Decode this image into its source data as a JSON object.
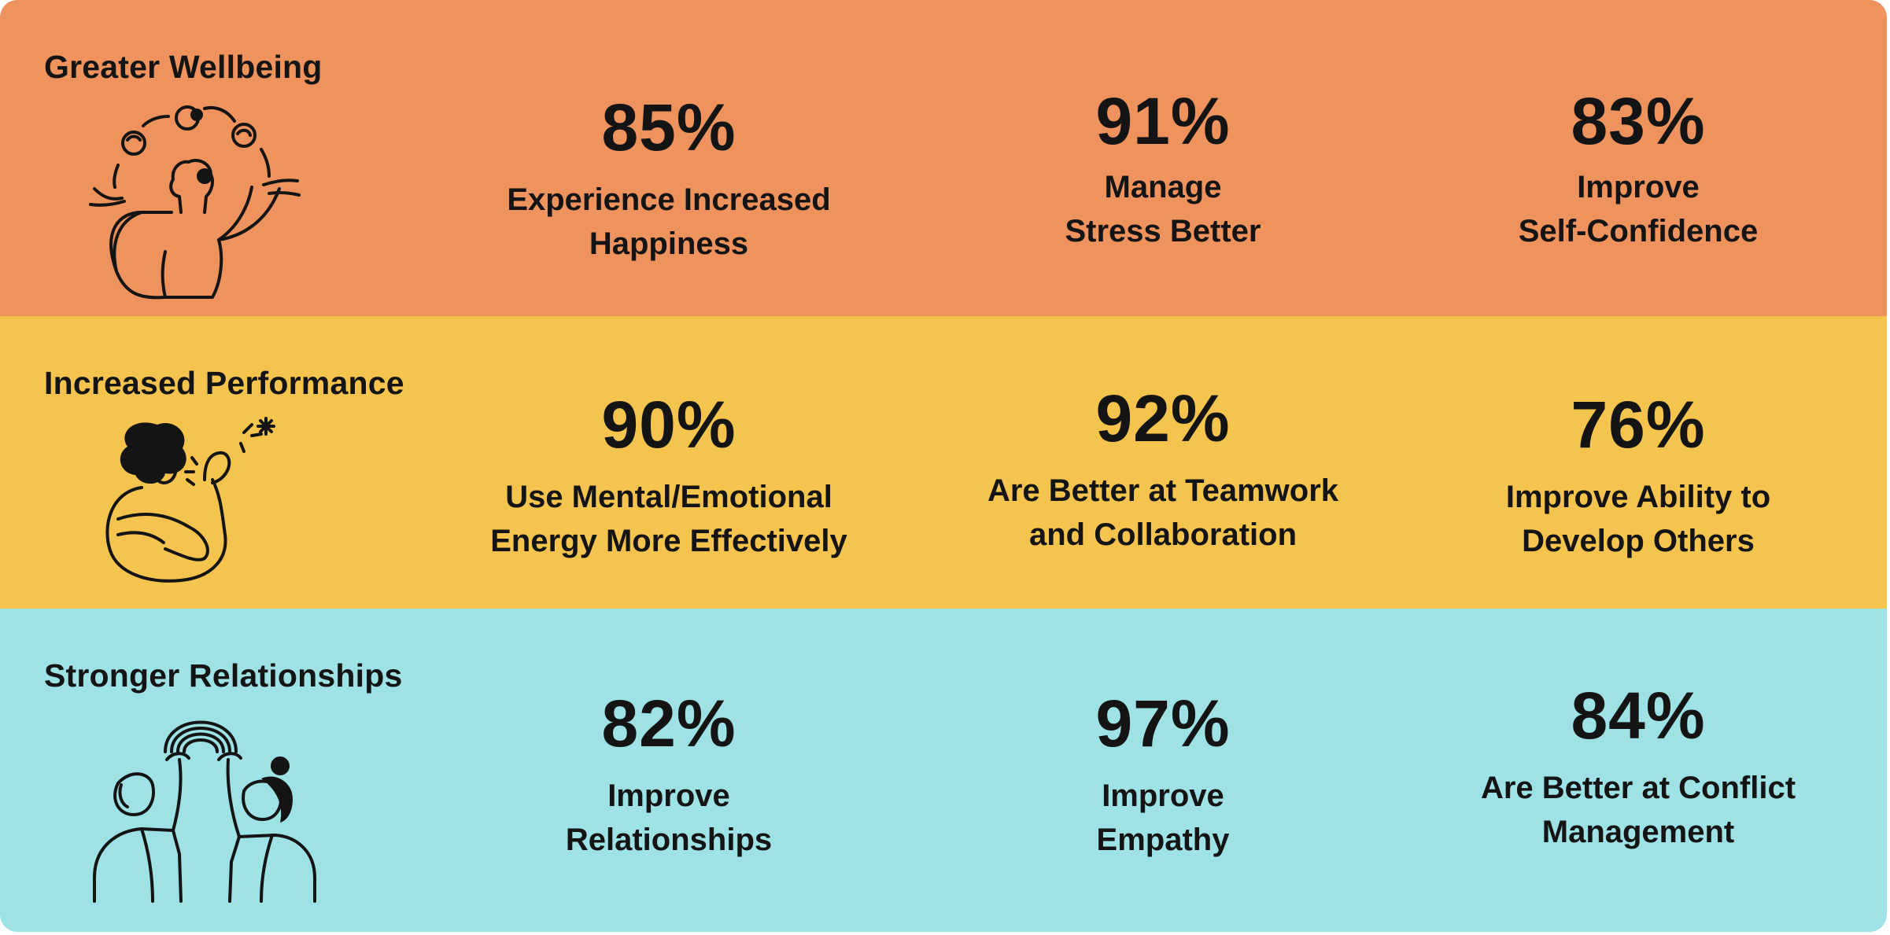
{
  "colors": {
    "row1_bg": "#EF935E",
    "row2_bg": "#F4C44E",
    "row3_bg": "#9EE2E5",
    "text": "#141414"
  },
  "rows": [
    {
      "title": "Greater Wellbeing",
      "icon": "juggling-person-icon",
      "stats": [
        {
          "value": "85%",
          "label": [
            "Experience Increased",
            "Happiness"
          ]
        },
        {
          "value": "91%",
          "label": [
            "Manage",
            "Stress Better"
          ]
        },
        {
          "value": "83%",
          "label": [
            "Improve",
            "Self-Confidence"
          ]
        }
      ]
    },
    {
      "title": "Increased Performance",
      "icon": "self-hug-person-icon",
      "stats": [
        {
          "value": "90%",
          "label": [
            "Use Mental/Emotional",
            "Energy More Effectively"
          ]
        },
        {
          "value": "92%",
          "label": [
            "Are Better at Teamwork",
            "and Collaboration"
          ]
        },
        {
          "value": "76%",
          "label": [
            "Improve Ability to",
            "Develop Others"
          ]
        }
      ]
    },
    {
      "title": "Stronger Relationships",
      "icon": "two-people-rainbow-icon",
      "stats": [
        {
          "value": "82%",
          "label": [
            "Improve",
            "Relationships"
          ]
        },
        {
          "value": "97%",
          "label": [
            "Improve",
            "Empathy"
          ]
        },
        {
          "value": "84%",
          "label": [
            "Are Better at Conflict",
            "Management"
          ]
        }
      ]
    }
  ]
}
